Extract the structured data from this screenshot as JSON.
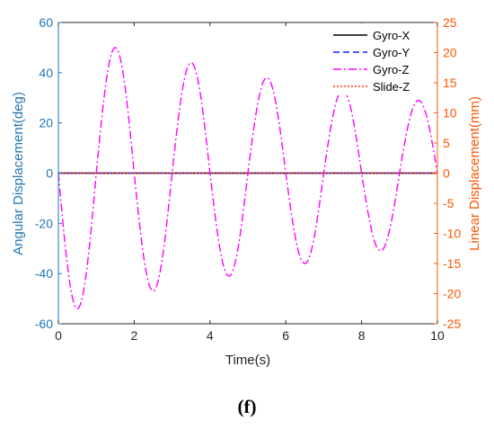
{
  "chart_data": {
    "type": "line",
    "xlabel": "Time(s)",
    "ylabel_left": "Angular Displacement(deg)",
    "ylabel_right": "Linear Displacement(mm)",
    "xlim": [
      0,
      10
    ],
    "ylim_left": [
      -60,
      60
    ],
    "ylim_right": [
      -25,
      25
    ],
    "xticks": [
      0,
      2,
      4,
      6,
      8,
      10
    ],
    "yticks_left": [
      -60,
      -40,
      -20,
      0,
      20,
      40,
      60
    ],
    "yticks_right": [
      -25,
      -20,
      -15,
      -10,
      -5,
      0,
      5,
      10,
      15,
      20,
      25
    ],
    "grid": false,
    "legend_position": "top-right",
    "colors": {
      "left_axis": "#1f77b4",
      "right_axis": "#ff5500"
    },
    "series": [
      {
        "name": "Gyro-X",
        "axis": "left",
        "color": "#000000",
        "dash": "solid",
        "x": [
          0,
          1,
          2,
          3,
          4,
          5,
          6,
          7,
          8,
          9,
          10
        ],
        "y": [
          0,
          0,
          0,
          0,
          0,
          0,
          0,
          0,
          0,
          0,
          0
        ]
      },
      {
        "name": "Gyro-Y",
        "axis": "left",
        "color": "#1f1fff",
        "dash": "dashed",
        "x": [
          0,
          1,
          2,
          3,
          4,
          5,
          6,
          7,
          8,
          9,
          10
        ],
        "y": [
          0,
          0,
          0,
          0,
          0,
          0,
          0,
          0,
          0,
          0,
          0
        ]
      },
      {
        "name": "Gyro-Z",
        "axis": "left",
        "color": "#ff00ff",
        "dash": "dashdot",
        "x": [
          0,
          0.5,
          1,
          1.5,
          2,
          2.5,
          3,
          3.5,
          4,
          4.5,
          5,
          5.5,
          6,
          6.5,
          7,
          7.5,
          8,
          8.5,
          9,
          9.5,
          10
        ],
        "y": [
          0,
          -54,
          0,
          50,
          0,
          -47,
          0,
          44,
          0,
          -41,
          0,
          38,
          0,
          -36,
          0,
          33,
          0,
          -31,
          0,
          29,
          0
        ]
      },
      {
        "name": "Slide-Z",
        "axis": "right",
        "color": "#ff3300",
        "dash": "dotted",
        "x": [
          0,
          1,
          2,
          3,
          4,
          5,
          6,
          7,
          8,
          9,
          10
        ],
        "y": [
          0,
          0,
          0,
          0,
          0,
          0,
          0,
          0,
          0,
          0,
          0
        ]
      }
    ],
    "panel_label": "(f)"
  }
}
